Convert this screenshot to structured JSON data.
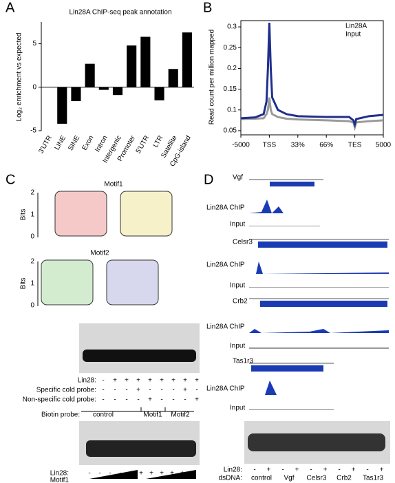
{
  "chart_data": [
    {
      "type": "bar",
      "letter": "A",
      "title": "Lin28A ChIP-seq peak annotation",
      "y_label": "Log₂ enrichment vs expected",
      "categories": [
        "3'UTR",
        "LINE",
        "SINE",
        "Exon",
        "Intron",
        "Intergenic",
        "Promoter",
        "5'UTR",
        "LTR",
        "Satellite",
        "CpG-island"
      ],
      "values": [
        0,
        -4.2,
        -1.6,
        2.7,
        -0.3,
        -0.9,
        4.8,
        5.8,
        -1.5,
        2.1,
        6.3
      ],
      "color": "#000000",
      "ylim": [
        -5,
        7.5
      ],
      "yticks": [
        -5,
        0,
        5
      ]
    },
    {
      "type": "line",
      "letter": "B",
      "y_label": "Read count per million mapped",
      "xlim": [
        0,
        5
      ],
      "xticks": [
        {
          "value": 0,
          "label": "-5000"
        },
        {
          "value": 1,
          "label": "TSS"
        },
        {
          "value": 2,
          "label": "33%"
        },
        {
          "value": 3,
          "label": "66%"
        },
        {
          "value": 4,
          "label": "TES"
        },
        {
          "value": 5,
          "label": "5000"
        }
      ],
      "ylim": [
        0.04,
        0.315
      ],
      "yticks": [
        0.05,
        0.1,
        0.15,
        0.2,
        0.25,
        0.3
      ],
      "legend": "top-right",
      "x": [
        0,
        0.5,
        0.8,
        0.9,
        0.95,
        1,
        1.05,
        1.1,
        1.3,
        1.6,
        2,
        3,
        3.8,
        3.95,
        4,
        4.05,
        4.5,
        5
      ],
      "series": [
        {
          "name": "Lin28A",
          "color": "#1f2f8c",
          "values": [
            0.08,
            0.082,
            0.09,
            0.12,
            0.2,
            0.31,
            0.2,
            0.13,
            0.1,
            0.09,
            0.085,
            0.083,
            0.083,
            0.075,
            0.065,
            0.078,
            0.085,
            0.088
          ]
        },
        {
          "name": "Input",
          "color": "#9a9a9a",
          "values": [
            0.078,
            0.079,
            0.08,
            0.09,
            0.1,
            0.13,
            0.1,
            0.09,
            0.083,
            0.079,
            0.077,
            0.075,
            0.073,
            0.07,
            0.058,
            0.07,
            0.073,
            0.075
          ]
        }
      ]
    }
  ],
  "panel_c": {
    "letter": "C",
    "motif1": "Motif1",
    "motif2": "Motif2",
    "bits_label": "Bits",
    "bits_ticks": [
      2,
      1,
      0
    ],
    "gel1_rows": [
      {
        "label": "Lin28:",
        "signs": [
          "-",
          "+",
          "+",
          "+",
          "+",
          "+",
          "+",
          "+",
          "+"
        ]
      },
      {
        "label": "Specific cold probe:",
        "signs": [
          "-",
          "-",
          "-",
          "+",
          "-",
          "-",
          "-",
          "+",
          "-"
        ]
      },
      {
        "label": "Non-specific cold probe:",
        "signs": [
          "-",
          "-",
          "-",
          "-",
          "+",
          "-",
          "-",
          "-",
          "+"
        ]
      }
    ],
    "biotin_label": "Biotin probe:",
    "probe_groups": [
      "control",
      "Motif1",
      "Motif2"
    ],
    "gel2_lin28": {
      "label": "Lin28:",
      "signs": [
        "-",
        "-",
        "-",
        "-",
        "-",
        "+",
        "+",
        "+",
        "+",
        "+",
        "+"
      ]
    },
    "competitor": "Motif1"
  },
  "panel_d": {
    "letter": "D",
    "genes": [
      {
        "name": "Vgf",
        "chip": "Lin28A ChIP",
        "input": "Input"
      },
      {
        "name": "Celsr3",
        "chip": "Lin28A ChIP",
        "input": "Input"
      },
      {
        "name": "Crb2",
        "chip": "Lin28A ChIP",
        "input": "Input"
      },
      {
        "name": "Tas1r3",
        "chip": "Lin28A ChIP",
        "input": "Input"
      }
    ],
    "lin28": {
      "label": "Lin28:",
      "signs": [
        "-",
        "+",
        "-",
        "+",
        "-",
        "+",
        "-",
        "+",
        "-",
        "+"
      ]
    },
    "dsdna_label": "dsDNA:",
    "dsdna_groups": [
      "control",
      "Vgf",
      "Celsr3",
      "Crb2",
      "Tas1r3"
    ]
  }
}
